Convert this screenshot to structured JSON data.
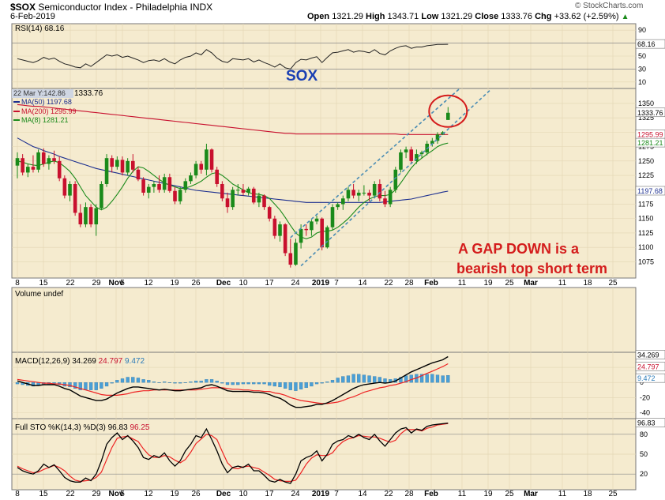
{
  "header": {
    "symbol": "$SOX",
    "name": "Semiconductor Index - Philadelphia",
    "exchange": "INDX",
    "date": "6-Feb-2019",
    "open_label": "Open",
    "open": "1321.29",
    "high_label": "High",
    "high": "1343.71",
    "low_label": "Low",
    "low": "1321.29",
    "close_label": "Close",
    "close": "1333.76",
    "chg_label": "Chg",
    "chg": "+33.62 (+2.59%)",
    "arrow": "▲",
    "watermark": "© StockCharts.com"
  },
  "panels": {
    "rsi": {
      "label": "RSI(14) 68.16",
      "value_tag": "68.16",
      "ticks": [
        "90",
        "70",
        "50",
        "30",
        "10"
      ]
    },
    "price": {
      "legend_price": "1333.76",
      "legend_date": "22 Mar Y:142.86",
      "ma50_label": "MA(50) 1197.68",
      "ma200_label": "MA(200) 1295.99",
      "ma8_label": "MA(8) 1281.21",
      "tags": {
        "close": "1333.76",
        "ma200": "1295.99",
        "ma8": "1281.21",
        "ma50": "1197.68"
      },
      "ticks": [
        "1350",
        "1325",
        "1300",
        "1275",
        "1250",
        "1225",
        "1200",
        "1175",
        "1150",
        "1125",
        "1100",
        "1075"
      ]
    },
    "volume": {
      "label": "Volume undef"
    },
    "macd": {
      "label": "MACD(12,26,9)",
      "v1": "34.269",
      "v2": "24.797",
      "v3": "9.472",
      "tags": [
        "34.269",
        "24.797",
        "9.472"
      ],
      "ticks": [
        "20",
        "0",
        "-20",
        "-40"
      ]
    },
    "sto": {
      "label": "Full STO %K(14,3) %D(3)",
      "v1": "96.83",
      "v2": "96.25",
      "tag": "96.83",
      "ticks": [
        "80",
        "50",
        "20"
      ]
    }
  },
  "x_labels": [
    "8",
    "15",
    "22",
    "29",
    "Nov",
    "5",
    "12",
    "19",
    "26",
    "Dec",
    "10",
    "17",
    "24",
    "2019",
    "7",
    "14",
    "22",
    "28",
    "Feb",
    "11",
    "19",
    "25",
    "Mar",
    "11",
    "18",
    "25"
  ],
  "annotations": {
    "sox": "SOX",
    "gap_line1": "A GAP DOWN is a",
    "gap_line2": "bearish top short term"
  },
  "colors": {
    "up": "#1a8a1a",
    "down": "#c8102e",
    "ma50": "#1c2f8f",
    "ma200": "#c8102e",
    "ma8": "#1a8a1a",
    "channel": "#4a8cb4",
    "bg": "#f5ebcf"
  },
  "chart_data": {
    "type": "candlestick",
    "period_start": "2018-10-08",
    "bars": [
      {
        "o": 1242,
        "h": 1265,
        "l": 1220,
        "c": 1255
      },
      {
        "o": 1255,
        "h": 1262,
        "l": 1225,
        "c": 1230
      },
      {
        "o": 1230,
        "h": 1245,
        "l": 1222,
        "c": 1240
      },
      {
        "o": 1240,
        "h": 1260,
        "l": 1230,
        "c": 1235
      },
      {
        "o": 1235,
        "h": 1270,
        "l": 1230,
        "c": 1265
      },
      {
        "o": 1265,
        "h": 1272,
        "l": 1240,
        "c": 1245
      },
      {
        "o": 1245,
        "h": 1260,
        "l": 1235,
        "c": 1255
      },
      {
        "o": 1255,
        "h": 1268,
        "l": 1245,
        "c": 1250
      },
      {
        "o": 1250,
        "h": 1258,
        "l": 1215,
        "c": 1220
      },
      {
        "o": 1220,
        "h": 1225,
        "l": 1185,
        "c": 1190
      },
      {
        "o": 1190,
        "h": 1215,
        "l": 1180,
        "c": 1210
      },
      {
        "o": 1210,
        "h": 1215,
        "l": 1155,
        "c": 1160
      },
      {
        "o": 1160,
        "h": 1175,
        "l": 1135,
        "c": 1140
      },
      {
        "o": 1140,
        "h": 1178,
        "l": 1135,
        "c": 1170
      },
      {
        "o": 1170,
        "h": 1175,
        "l": 1135,
        "c": 1140
      },
      {
        "o": 1140,
        "h": 1175,
        "l": 1120,
        "c": 1168
      },
      {
        "o": 1168,
        "h": 1215,
        "l": 1165,
        "c": 1210
      },
      {
        "o": 1210,
        "h": 1262,
        "l": 1205,
        "c": 1255
      },
      {
        "o": 1255,
        "h": 1260,
        "l": 1230,
        "c": 1240
      },
      {
        "o": 1240,
        "h": 1258,
        "l": 1235,
        "c": 1252
      },
      {
        "o": 1252,
        "h": 1258,
        "l": 1225,
        "c": 1230
      },
      {
        "o": 1230,
        "h": 1255,
        "l": 1225,
        "c": 1250
      },
      {
        "o": 1250,
        "h": 1262,
        "l": 1230,
        "c": 1235
      },
      {
        "o": 1235,
        "h": 1240,
        "l": 1215,
        "c": 1218
      },
      {
        "o": 1218,
        "h": 1222,
        "l": 1190,
        "c": 1195
      },
      {
        "o": 1195,
        "h": 1210,
        "l": 1185,
        "c": 1205
      },
      {
        "o": 1205,
        "h": 1215,
        "l": 1195,
        "c": 1210
      },
      {
        "o": 1210,
        "h": 1225,
        "l": 1195,
        "c": 1200
      },
      {
        "o": 1200,
        "h": 1228,
        "l": 1195,
        "c": 1222
      },
      {
        "o": 1222,
        "h": 1228,
        "l": 1195,
        "c": 1198
      },
      {
        "o": 1198,
        "h": 1205,
        "l": 1175,
        "c": 1180
      },
      {
        "o": 1180,
        "h": 1205,
        "l": 1175,
        "c": 1200
      },
      {
        "o": 1200,
        "h": 1220,
        "l": 1195,
        "c": 1215
      },
      {
        "o": 1215,
        "h": 1230,
        "l": 1210,
        "c": 1225
      },
      {
        "o": 1225,
        "h": 1250,
        "l": 1220,
        "c": 1245
      },
      {
        "o": 1245,
        "h": 1250,
        "l": 1228,
        "c": 1235
      },
      {
        "o": 1235,
        "h": 1280,
        "l": 1225,
        "c": 1270
      },
      {
        "o": 1270,
        "h": 1272,
        "l": 1230,
        "c": 1235
      },
      {
        "o": 1235,
        "h": 1240,
        "l": 1205,
        "c": 1210
      },
      {
        "o": 1210,
        "h": 1215,
        "l": 1180,
        "c": 1185
      },
      {
        "o": 1185,
        "h": 1195,
        "l": 1160,
        "c": 1170
      },
      {
        "o": 1170,
        "h": 1205,
        "l": 1165,
        "c": 1200
      },
      {
        "o": 1200,
        "h": 1210,
        "l": 1190,
        "c": 1200
      },
      {
        "o": 1200,
        "h": 1210,
        "l": 1190,
        "c": 1195
      },
      {
        "o": 1195,
        "h": 1205,
        "l": 1190,
        "c": 1202
      },
      {
        "o": 1202,
        "h": 1205,
        "l": 1175,
        "c": 1178
      },
      {
        "o": 1178,
        "h": 1195,
        "l": 1170,
        "c": 1190
      },
      {
        "o": 1190,
        "h": 1192,
        "l": 1165,
        "c": 1170
      },
      {
        "o": 1170,
        "h": 1172,
        "l": 1145,
        "c": 1150
      },
      {
        "o": 1150,
        "h": 1155,
        "l": 1115,
        "c": 1120
      },
      {
        "o": 1120,
        "h": 1145,
        "l": 1110,
        "c": 1140
      },
      {
        "o": 1140,
        "h": 1142,
        "l": 1085,
        "c": 1090
      },
      {
        "o": 1090,
        "h": 1115,
        "l": 1065,
        "c": 1070
      },
      {
        "o": 1070,
        "h": 1115,
        "l": 1068,
        "c": 1108
      },
      {
        "o": 1108,
        "h": 1140,
        "l": 1098,
        "c": 1132
      },
      {
        "o": 1132,
        "h": 1140,
        "l": 1120,
        "c": 1130
      },
      {
        "o": 1130,
        "h": 1148,
        "l": 1120,
        "c": 1145
      },
      {
        "o": 1145,
        "h": 1155,
        "l": 1140,
        "c": 1150
      },
      {
        "o": 1150,
        "h": 1152,
        "l": 1095,
        "c": 1100
      },
      {
        "o": 1100,
        "h": 1138,
        "l": 1098,
        "c": 1135
      },
      {
        "o": 1135,
        "h": 1175,
        "l": 1130,
        "c": 1170
      },
      {
        "o": 1170,
        "h": 1178,
        "l": 1165,
        "c": 1175
      },
      {
        "o": 1175,
        "h": 1190,
        "l": 1165,
        "c": 1185
      },
      {
        "o": 1185,
        "h": 1205,
        "l": 1180,
        "c": 1200
      },
      {
        "o": 1200,
        "h": 1210,
        "l": 1185,
        "c": 1190
      },
      {
        "o": 1190,
        "h": 1200,
        "l": 1180,
        "c": 1195
      },
      {
        "o": 1195,
        "h": 1208,
        "l": 1190,
        "c": 1195
      },
      {
        "o": 1195,
        "h": 1200,
        "l": 1180,
        "c": 1190
      },
      {
        "o": 1190,
        "h": 1215,
        "l": 1185,
        "c": 1210
      },
      {
        "o": 1210,
        "h": 1218,
        "l": 1180,
        "c": 1185
      },
      {
        "o": 1185,
        "h": 1198,
        "l": 1170,
        "c": 1175
      },
      {
        "o": 1175,
        "h": 1205,
        "l": 1170,
        "c": 1200
      },
      {
        "o": 1200,
        "h": 1240,
        "l": 1195,
        "c": 1235
      },
      {
        "o": 1235,
        "h": 1270,
        "l": 1230,
        "c": 1265
      },
      {
        "o": 1265,
        "h": 1275,
        "l": 1255,
        "c": 1270
      },
      {
        "o": 1270,
        "h": 1275,
        "l": 1245,
        "c": 1250
      },
      {
        "o": 1250,
        "h": 1270,
        "l": 1245,
        "c": 1262
      },
      {
        "o": 1262,
        "h": 1268,
        "l": 1255,
        "c": 1265
      },
      {
        "o": 1265,
        "h": 1285,
        "l": 1260,
        "c": 1280
      },
      {
        "o": 1280,
        "h": 1290,
        "l": 1275,
        "c": 1285
      },
      {
        "o": 1285,
        "h": 1300,
        "l": 1280,
        "c": 1296
      },
      {
        "o": 1296,
        "h": 1302,
        "l": 1295,
        "c": 1300
      },
      {
        "o": 1321.29,
        "h": 1343.71,
        "l": 1321.29,
        "c": 1333.76
      }
    ],
    "ma50": [
      1290,
      1285,
      1280,
      1275,
      1272,
      1268,
      1265,
      1262,
      1258,
      1255,
      1252,
      1249,
      1246,
      1243,
      1240,
      1237,
      1235,
      1233,
      1231,
      1229,
      1227,
      1225,
      1223,
      1221,
      1219,
      1217,
      1215,
      1213,
      1211,
      1209,
      1207,
      1205,
      1203,
      1201,
      1199,
      1198,
      1197,
      1196,
      1195,
      1194,
      1193,
      1192,
      1191,
      1190,
      1189,
      1188,
      1187,
      1186,
      1185,
      1184,
      1183,
      1182,
      1181,
      1180,
      1179,
      1178,
      1178,
      1178,
      1178,
      1178,
      1178,
      1178,
      1178,
      1178,
      1178,
      1178,
      1178,
      1178,
      1178,
      1178,
      1179,
      1180,
      1181,
      1182,
      1183,
      1184,
      1186,
      1188,
      1190,
      1192,
      1194,
      1196,
      1197.68
    ],
    "ma200": [
      1348,
      1347,
      1346,
      1345,
      1345,
      1344,
      1343,
      1342,
      1341,
      1340,
      1339,
      1338,
      1337,
      1336,
      1335,
      1334,
      1333,
      1332,
      1331,
      1330,
      1329,
      1328,
      1327,
      1326,
      1325,
      1324,
      1323,
      1322,
      1321,
      1320,
      1319,
      1318,
      1317,
      1316,
      1315,
      1314,
      1313,
      1312,
      1311,
      1310,
      1309,
      1308,
      1307,
      1306,
      1305,
      1304,
      1303,
      1302,
      1301,
      1300,
      1299,
      1298,
      1298,
      1297,
      1297,
      1297,
      1297,
      1297,
      1297,
      1297,
      1297,
      1297,
      1297,
      1297,
      1297,
      1297,
      1297,
      1297,
      1297,
      1297,
      1297,
      1297,
      1297,
      1296,
      1296,
      1296,
      1296,
      1296,
      1296,
      1296,
      1296,
      1296,
      1295.99
    ],
    "ma8": [
      1250,
      1248,
      1245,
      1243,
      1242,
      1245,
      1248,
      1250,
      1247,
      1240,
      1232,
      1220,
      1205,
      1190,
      1180,
      1170,
      1165,
      1170,
      1180,
      1192,
      1205,
      1220,
      1232,
      1240,
      1238,
      1232,
      1225,
      1218,
      1212,
      1208,
      1205,
      1202,
      1203,
      1206,
      1210,
      1215,
      1222,
      1228,
      1230,
      1225,
      1218,
      1210,
      1205,
      1200,
      1195,
      1193,
      1192,
      1190,
      1185,
      1175,
      1165,
      1152,
      1138,
      1125,
      1118,
      1115,
      1118,
      1125,
      1128,
      1128,
      1130,
      1135,
      1142,
      1150,
      1160,
      1170,
      1178,
      1184,
      1188,
      1190,
      1190,
      1192,
      1200,
      1212,
      1225,
      1238,
      1248,
      1255,
      1262,
      1268,
      1275,
      1279,
      1281.21
    ],
    "rsi": [
      46,
      44,
      42,
      40,
      43,
      48,
      45,
      47,
      42,
      38,
      36,
      33,
      32,
      38,
      34,
      40,
      46,
      52,
      50,
      52,
      48,
      50,
      47,
      44,
      40,
      43,
      44,
      42,
      46,
      41,
      38,
      44,
      48,
      50,
      55,
      52,
      60,
      55,
      47,
      42,
      40,
      46,
      45,
      44,
      46,
      41,
      44,
      40,
      37,
      33,
      38,
      32,
      30,
      40,
      45,
      44,
      47,
      49,
      40,
      48,
      55,
      56,
      58,
      60,
      56,
      58,
      57,
      55,
      60,
      54,
      52,
      58,
      62,
      65,
      66,
      62,
      64,
      64,
      66,
      67,
      68,
      68,
      68.16
    ],
    "macd": [
      2,
      0,
      -2,
      -4,
      -4,
      -3,
      -3,
      -3,
      -5,
      -8,
      -10,
      -14,
      -18,
      -20,
      -22,
      -24,
      -24,
      -22,
      -18,
      -14,
      -11,
      -8,
      -6,
      -6,
      -7,
      -8,
      -9,
      -10,
      -9,
      -10,
      -11,
      -11,
      -10,
      -9,
      -8,
      -7,
      -4,
      -3,
      -5,
      -8,
      -11,
      -12,
      -12,
      -12,
      -12,
      -13,
      -13,
      -14,
      -16,
      -19,
      -21,
      -25,
      -30,
      -33,
      -33,
      -32,
      -31,
      -29,
      -29,
      -27,
      -24,
      -20,
      -16,
      -12,
      -8,
      -5,
      -3,
      -2,
      -1,
      0,
      -1,
      0,
      2,
      6,
      10,
      14,
      17,
      20,
      23,
      26,
      28,
      30,
      34.269
    ],
    "macd_signal": [
      4,
      3,
      2,
      1,
      0,
      -1,
      -1,
      -2,
      -2,
      -3,
      -4,
      -6,
      -8,
      -10,
      -12,
      -14,
      -16,
      -17,
      -17,
      -17,
      -16,
      -15,
      -13,
      -12,
      -11,
      -11,
      -10,
      -10,
      -10,
      -10,
      -10,
      -10,
      -10,
      -10,
      -10,
      -9,
      -8,
      -7,
      -7,
      -7,
      -8,
      -9,
      -9,
      -10,
      -10,
      -11,
      -11,
      -12,
      -12,
      -14,
      -15,
      -17,
      -20,
      -22,
      -24,
      -25,
      -26,
      -27,
      -28,
      -28,
      -27,
      -26,
      -24,
      -21,
      -19,
      -16,
      -13,
      -11,
      -9,
      -7,
      -6,
      -4,
      -3,
      -1,
      1,
      4,
      6,
      9,
      12,
      15,
      18,
      21,
      24.797
    ],
    "sto_k": [
      30,
      25,
      22,
      20,
      25,
      35,
      30,
      34,
      25,
      15,
      10,
      8,
      8,
      14,
      10,
      20,
      40,
      65,
      75,
      82,
      72,
      78,
      70,
      60,
      45,
      42,
      48,
      45,
      52,
      40,
      32,
      40,
      55,
      65,
      78,
      75,
      88,
      72,
      55,
      35,
      22,
      30,
      32,
      30,
      35,
      25,
      25,
      18,
      10,
      8,
      12,
      8,
      6,
      20,
      40,
      45,
      48,
      55,
      40,
      50,
      65,
      70,
      72,
      78,
      75,
      80,
      75,
      72,
      80,
      70,
      62,
      72,
      82,
      88,
      90,
      82,
      88,
      86,
      92,
      94,
      95,
      96,
      96.83
    ],
    "sto_d": [
      32,
      28,
      25,
      22,
      23,
      27,
      30,
      33,
      30,
      25,
      17,
      11,
      9,
      10,
      11,
      15,
      23,
      42,
      60,
      74,
      76,
      77,
      73,
      69,
      58,
      49,
      45,
      45,
      48,
      46,
      41,
      37,
      42,
      53,
      66,
      73,
      80,
      78,
      72,
      54,
      37,
      29,
      28,
      31,
      32,
      30,
      28,
      23,
      18,
      12,
      10,
      9,
      9,
      11,
      22,
      35,
      44,
      49,
      48,
      48,
      52,
      62,
      69,
      73,
      75,
      78,
      77,
      76,
      76,
      74,
      71,
      68,
      71,
      81,
      87,
      87,
      87,
      85,
      89,
      91,
      94,
      95,
      96.25
    ],
    "price_ylim": [
      1055,
      1365
    ],
    "rsi_ylim": [
      0,
      100
    ],
    "macd_ylim": [
      -48,
      40
    ],
    "sto_ylim": [
      0,
      100
    ],
    "channel_lower": {
      "x0": 54,
      "y0": 1068,
      "x1": 90,
      "y1": 1373
    },
    "channel_upper": {
      "x0": 52,
      "y0": 1117,
      "x1": 85,
      "y1": 1382
    }
  }
}
